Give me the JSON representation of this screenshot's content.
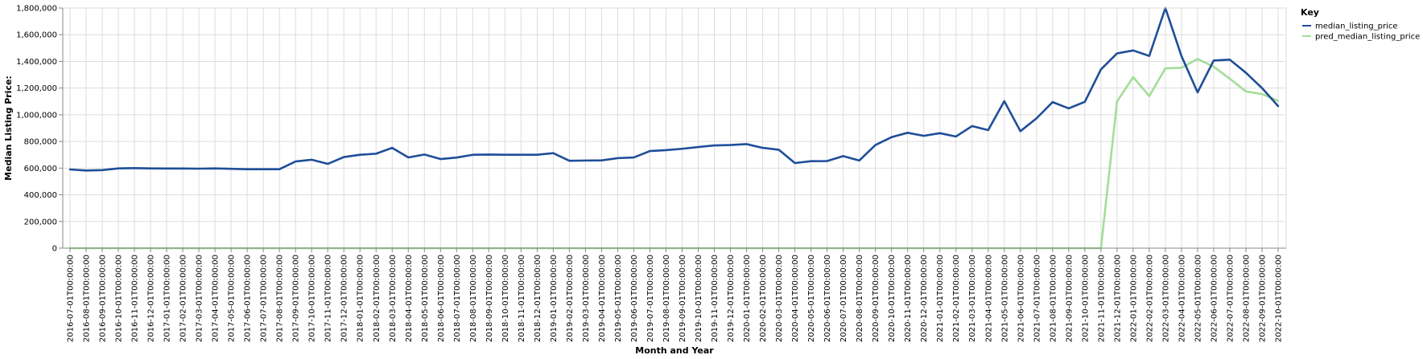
{
  "chart_data": {
    "type": "line",
    "xlabel": "Month and Year",
    "ylabel": "Median Listing Price:",
    "ylim": [
      0,
      1800000
    ],
    "yticks": [
      0,
      200000,
      400000,
      600000,
      800000,
      1000000,
      1200000,
      1400000,
      1600000,
      1800000
    ],
    "grid": true,
    "legend": {
      "title": "Key",
      "placement": "top-right"
    },
    "x": [
      "2016-07-01T00:00:00",
      "2016-08-01T00:00:00",
      "2016-09-01T00:00:00",
      "2016-10-01T00:00:00",
      "2016-11-01T00:00:00",
      "2016-12-01T00:00:00",
      "2017-01-01T00:00:00",
      "2017-02-01T00:00:00",
      "2017-03-01T00:00:00",
      "2017-04-01T00:00:00",
      "2017-05-01T00:00:00",
      "2017-06-01T00:00:00",
      "2017-07-01T00:00:00",
      "2017-08-01T00:00:00",
      "2017-09-01T00:00:00",
      "2017-10-01T00:00:00",
      "2017-11-01T00:00:00",
      "2017-12-01T00:00:00",
      "2018-01-01T00:00:00",
      "2018-02-01T00:00:00",
      "2018-03-01T00:00:00",
      "2018-04-01T00:00:00",
      "2018-05-01T00:00:00",
      "2018-06-01T00:00:00",
      "2018-07-01T00:00:00",
      "2018-08-01T00:00:00",
      "2018-09-01T00:00:00",
      "2018-10-01T00:00:00",
      "2018-11-01T00:00:00",
      "2018-12-01T00:00:00",
      "2019-01-01T00:00:00",
      "2019-02-01T00:00:00",
      "2019-03-01T00:00:00",
      "2019-04-01T00:00:00",
      "2019-05-01T00:00:00",
      "2019-06-01T00:00:00",
      "2019-07-01T00:00:00",
      "2019-08-01T00:00:00",
      "2019-09-01T00:00:00",
      "2019-10-01T00:00:00",
      "2019-11-01T00:00:00",
      "2019-12-01T00:00:00",
      "2020-01-01T00:00:00",
      "2020-02-01T00:00:00",
      "2020-03-01T00:00:00",
      "2020-04-01T00:00:00",
      "2020-05-01T00:00:00",
      "2020-06-01T00:00:00",
      "2020-07-01T00:00:00",
      "2020-08-01T00:00:00",
      "2020-09-01T00:00:00",
      "2020-10-01T00:00:00",
      "2020-11-01T00:00:00",
      "2020-12-01T00:00:00",
      "2021-01-01T00:00:00",
      "2021-02-01T00:00:00",
      "2021-03-01T00:00:00",
      "2021-04-01T00:00:00",
      "2021-05-01T00:00:00",
      "2021-06-01T00:00:00",
      "2021-07-01T00:00:00",
      "2021-08-01T00:00:00",
      "2021-09-01T00:00:00",
      "2021-10-01T00:00:00",
      "2021-11-01T00:00:00",
      "2021-12-01T00:00:00",
      "2022-01-01T00:00:00",
      "2022-02-01T00:00:00",
      "2022-03-01T00:00:00",
      "2022-04-01T00:00:00",
      "2022-05-01T00:00:00",
      "2022-06-01T00:00:00",
      "2022-07-01T00:00:00",
      "2022-08-01T00:00:00",
      "2022-09-01T00:00:00",
      "2022-10-01T00:00:00"
    ],
    "series": [
      {
        "name": "median_listing_price",
        "color": "#1f4e99",
        "values": [
          590000,
          582000,
          585000,
          598000,
          600000,
          598000,
          597000,
          597000,
          596000,
          598000,
          595000,
          592000,
          592000,
          592000,
          650000,
          663000,
          632000,
          683000,
          700000,
          708000,
          752000,
          680000,
          702000,
          668000,
          679000,
          700000,
          702000,
          700000,
          700000,
          700000,
          712000,
          655000,
          657000,
          658000,
          675000,
          680000,
          728000,
          735000,
          745000,
          758000,
          770000,
          773000,
          780000,
          752000,
          738000,
          638000,
          652000,
          653000,
          690000,
          657000,
          773000,
          832000,
          865000,
          842000,
          862000,
          837000,
          915000,
          885000,
          1102000,
          877000,
          973000,
          1095000,
          1048000,
          1097000,
          1340000,
          1460000,
          1482000,
          1441000,
          1800000,
          1440000,
          1168000,
          1407000,
          1413000,
          1315000,
          1200000,
          1065000
        ]
      },
      {
        "name": "pred_median_listing_price",
        "color": "#a3dd98",
        "values": [
          0,
          0,
          0,
          0,
          0,
          0,
          0,
          0,
          0,
          0,
          0,
          0,
          0,
          0,
          0,
          0,
          0,
          0,
          0,
          0,
          0,
          0,
          0,
          0,
          0,
          0,
          0,
          0,
          0,
          0,
          0,
          0,
          0,
          0,
          0,
          0,
          0,
          0,
          0,
          0,
          0,
          0,
          0,
          0,
          0,
          0,
          0,
          0,
          0,
          0,
          0,
          0,
          0,
          0,
          0,
          0,
          0,
          0,
          0,
          0,
          0,
          0,
          0,
          0,
          0,
          1100000,
          1282000,
          1140000,
          1348000,
          1352000,
          1418000,
          1360000,
          1270000,
          1175000,
          1155000,
          1105000
        ]
      }
    ]
  }
}
